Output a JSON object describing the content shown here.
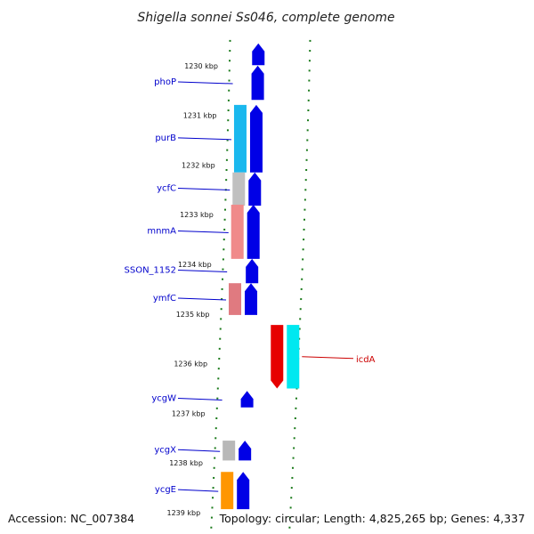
{
  "title": "Shigella sonnei Ss046, complete genome",
  "accession": "Accession: NC_007384",
  "summary": "Topology: circular; Length: 4,825,265 bp; Genes: 4,337",
  "ticks": [
    "1230 kbp",
    "1231 kbp",
    "1232 kbp",
    "1233 kbp",
    "1234 kbp",
    "1235 kbp",
    "1236 kbp",
    "1237 kbp",
    "1238 kbp",
    "1239 kbp"
  ],
  "genes": [
    {
      "name": "",
      "strand": "+",
      "kbp_start": 1229.55,
      "kbp_end": 1229.99,
      "cog_color": "",
      "label_color": ""
    },
    {
      "name": "phoP",
      "strand": "+",
      "kbp_start": 1230.0,
      "kbp_end": 1230.69,
      "cog_color": "",
      "label_color": "#0000cc"
    },
    {
      "name": "purB",
      "strand": "+",
      "kbp_start": 1230.79,
      "kbp_end": 1232.15,
      "cog_color": "#1ab8ee",
      "label_color": "#0000cc"
    },
    {
      "name": "ycfC",
      "strand": "+",
      "kbp_start": 1232.15,
      "kbp_end": 1232.82,
      "cog_color": "#c0c0c0",
      "label_color": "#0000cc"
    },
    {
      "name": "mnmA",
      "strand": "+",
      "kbp_start": 1232.8,
      "kbp_end": 1233.89,
      "cog_color": "#f08a8a",
      "label_color": "#0000cc"
    },
    {
      "name": "SSON_1152",
      "strand": "+",
      "kbp_start": 1233.89,
      "kbp_end": 1234.38,
      "cog_color": "",
      "label_color": "#0000cc"
    },
    {
      "name": "ymfC",
      "strand": "+",
      "kbp_start": 1234.38,
      "kbp_end": 1235.02,
      "cog_color": "#e07a80",
      "label_color": "#0000cc"
    },
    {
      "name": "icdA",
      "strand": "-",
      "kbp_start": 1235.22,
      "kbp_end": 1236.5,
      "cog_color": "#00e8f0",
      "label_color": "#cc0000"
    },
    {
      "name": "ycgW",
      "strand": "+",
      "kbp_start": 1236.55,
      "kbp_end": 1236.88,
      "cog_color": "",
      "label_color": "#0000cc"
    },
    {
      "name": "ycgX",
      "strand": "+",
      "kbp_start": 1237.55,
      "kbp_end": 1237.95,
      "cog_color": "#b8b8b8",
      "label_color": "#0000cc"
    },
    {
      "name": "ycgE",
      "strand": "+",
      "kbp_start": 1238.18,
      "kbp_end": 1238.93,
      "cog_color": "#ff9600",
      "label_color": "#0000cc"
    }
  ],
  "colors": {
    "forward_gene": "#0000e6",
    "reverse_gene": "#e60000",
    "backbone": "#8c8c8c",
    "tick_marks": "#1a7a1a"
  }
}
